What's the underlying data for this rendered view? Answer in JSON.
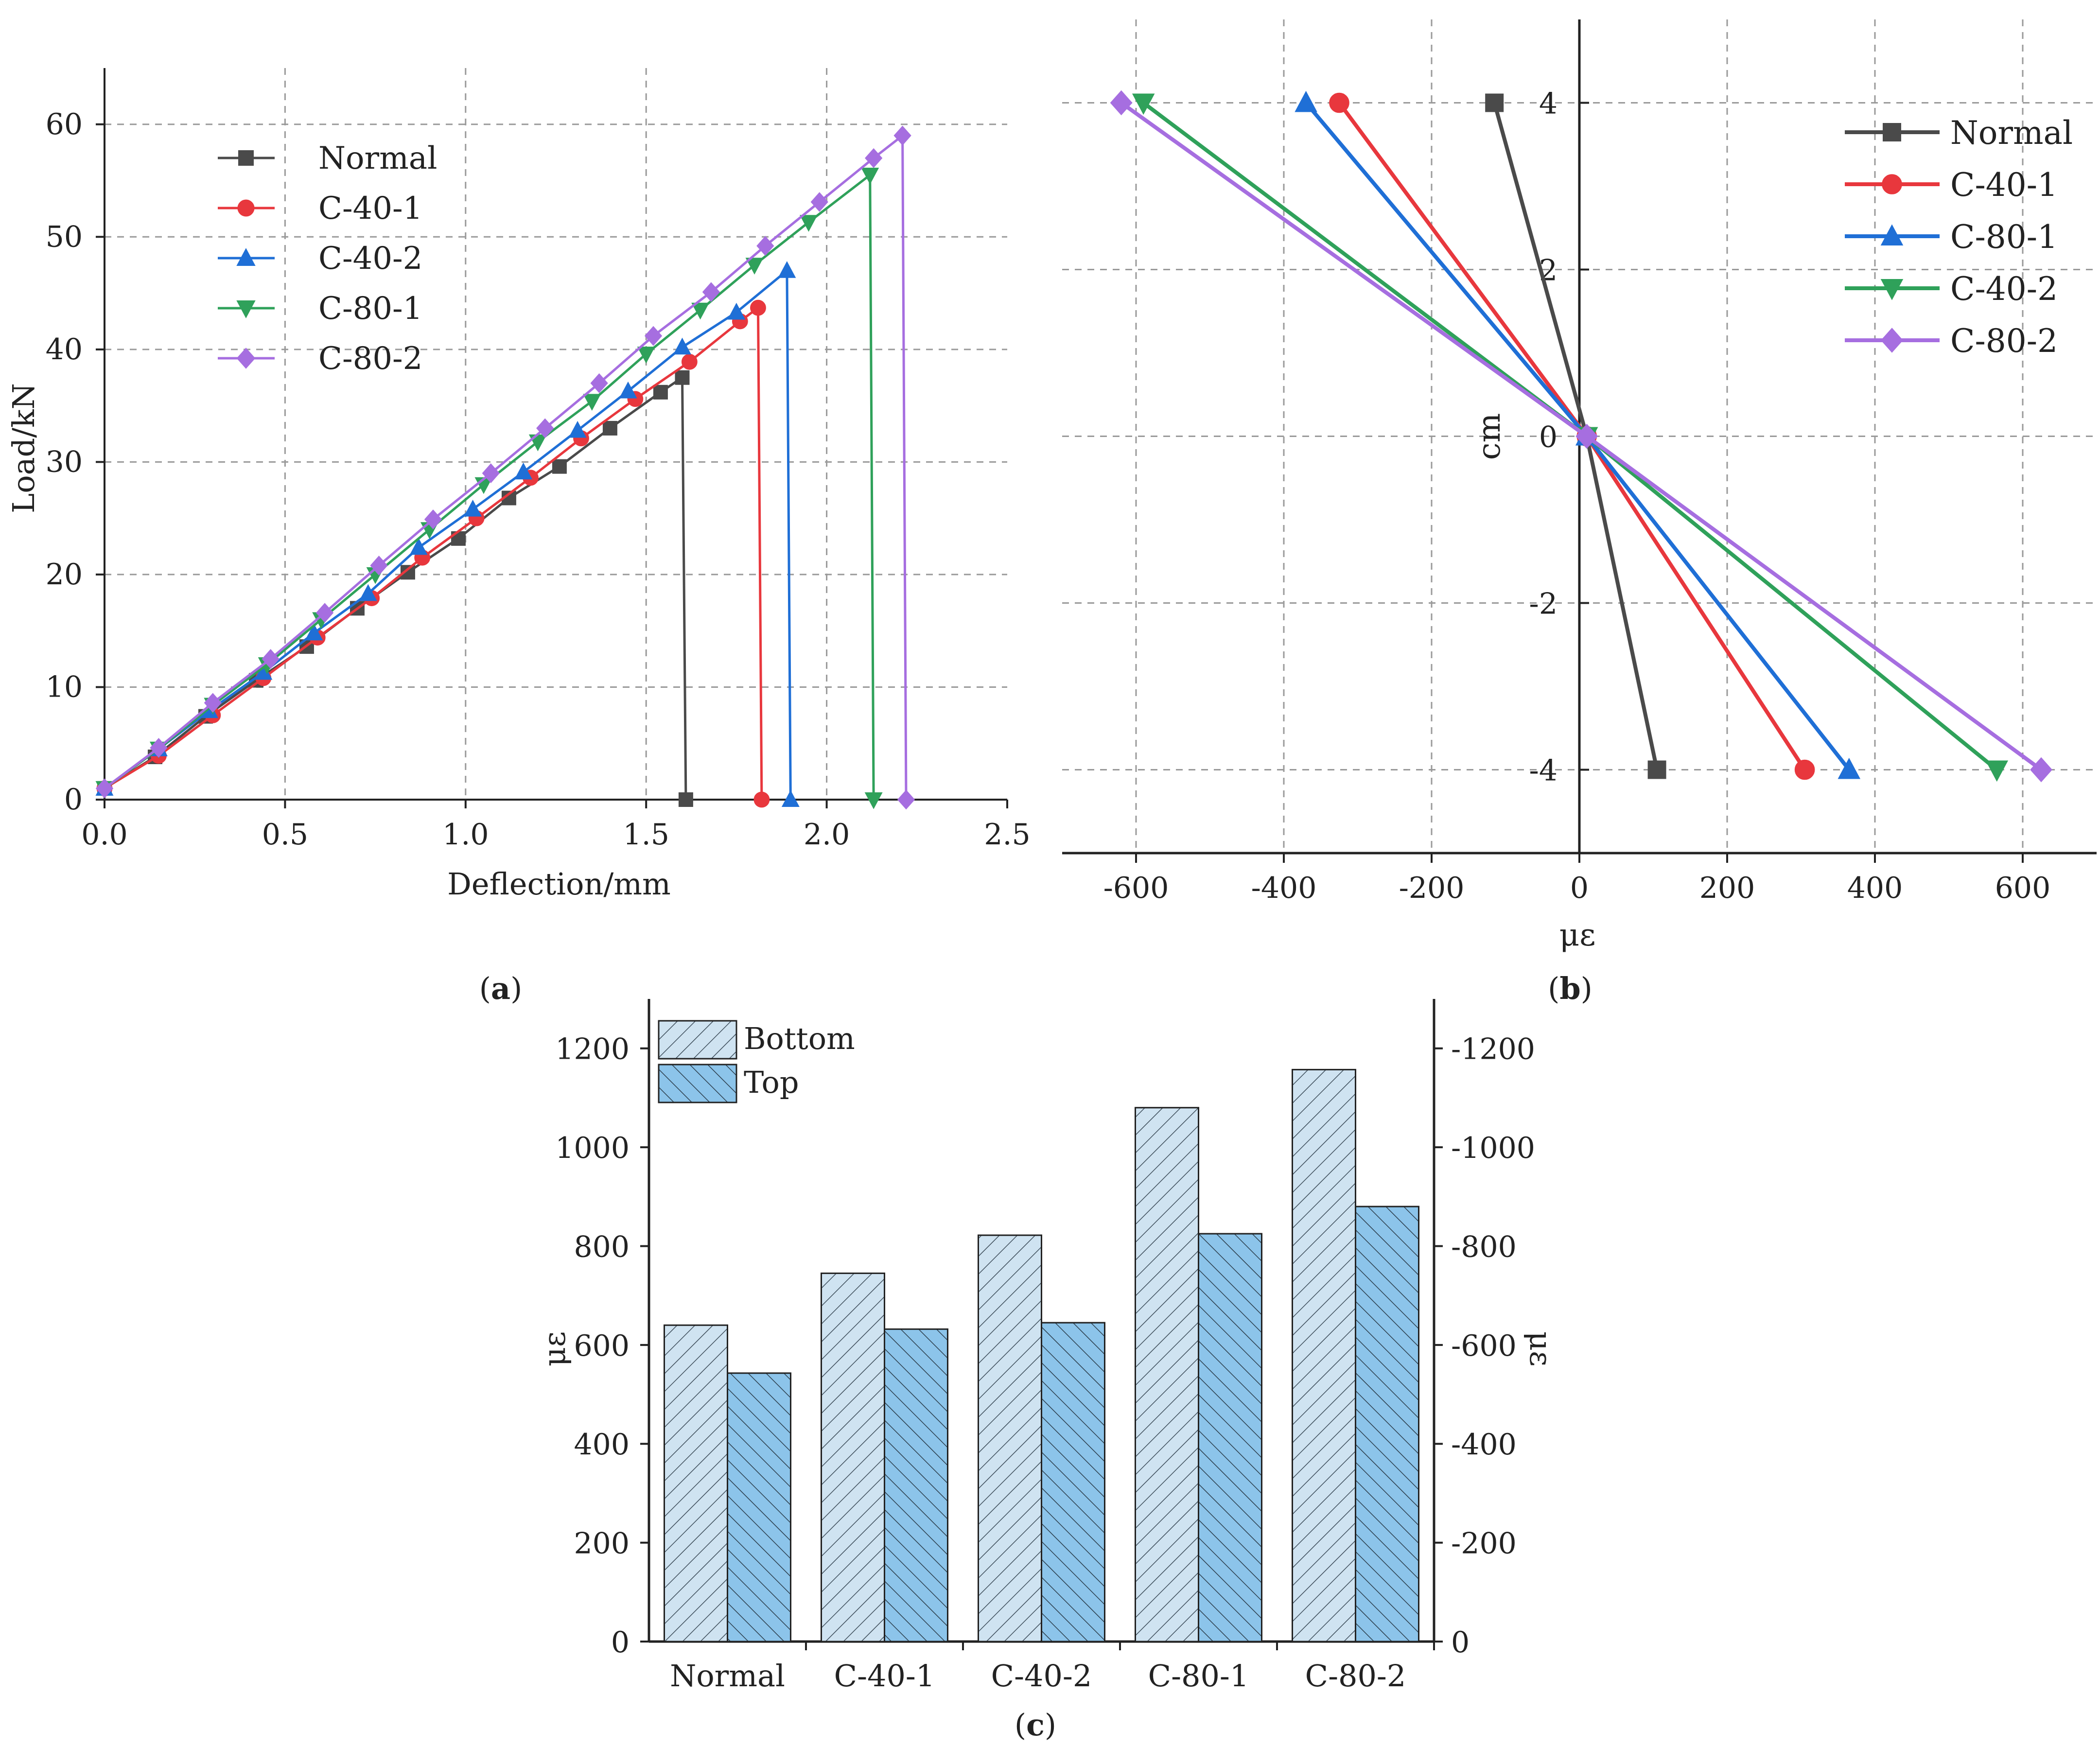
{
  "colors": {
    "normal": "#4a4a4a",
    "c401": "#e8373d",
    "c402": "#1f6fd6",
    "c801": "#2fa15a",
    "c802": "#a66ee0",
    "barLight": "#cfe3f1",
    "barDark": "#8cc4ea",
    "axis": "#222222",
    "grid": "#9a9a9a"
  },
  "chart_data": [
    {
      "id": "a",
      "type": "line",
      "label": "(a)",
      "label_letter": "a",
      "xlabel": "Deflection/mm",
      "ylabel": "Load/kN",
      "xlim": [
        0,
        2.5
      ],
      "ylim": [
        0,
        65
      ],
      "xticks": [
        "0.0",
        "0.5",
        "1.0",
        "1.5",
        "2.0",
        "2.5"
      ],
      "yticks": [
        "0",
        "10",
        "20",
        "30",
        "40",
        "50",
        "60"
      ],
      "grid": true,
      "legend_position": "top-left",
      "series": [
        {
          "name": "Normal",
          "color": "#4a4a4a",
          "marker": "square",
          "x": [
            0,
            0.14,
            0.28,
            0.42,
            0.56,
            0.7,
            0.84,
            0.98,
            1.12,
            1.26,
            1.4,
            1.54,
            1.6,
            1.61
          ],
          "y": [
            1,
            3.8,
            7.4,
            10.6,
            13.6,
            17.0,
            20.2,
            23.2,
            26.8,
            29.6,
            33.0,
            36.2,
            37.5,
            0
          ]
        },
        {
          "name": "C-40-1",
          "color": "#e8373d",
          "marker": "circle",
          "x": [
            0,
            0.15,
            0.3,
            0.44,
            0.59,
            0.74,
            0.88,
            1.03,
            1.18,
            1.32,
            1.47,
            1.62,
            1.76,
            1.81,
            1.82
          ],
          "y": [
            1,
            3.9,
            7.5,
            10.8,
            14.4,
            17.9,
            21.5,
            25.0,
            28.6,
            32.1,
            35.6,
            38.9,
            42.5,
            43.7,
            0
          ]
        },
        {
          "name": "C-40-2",
          "color": "#1f6fd6",
          "marker": "triangle-up",
          "x": [
            0,
            0.15,
            0.29,
            0.44,
            0.58,
            0.73,
            0.87,
            1.02,
            1.16,
            1.31,
            1.45,
            1.6,
            1.75,
            1.89,
            1.9
          ],
          "y": [
            1,
            4.5,
            7.9,
            11.3,
            14.8,
            18.3,
            22.4,
            25.8,
            29.1,
            32.8,
            36.3,
            40.2,
            43.3,
            47.0,
            0
          ]
        },
        {
          "name": "C-80-1",
          "color": "#2fa15a",
          "marker": "triangle-down",
          "x": [
            0,
            0.15,
            0.3,
            0.45,
            0.6,
            0.75,
            0.9,
            1.05,
            1.2,
            1.35,
            1.5,
            1.65,
            1.8,
            1.95,
            2.12,
            2.13
          ],
          "y": [
            1,
            4.5,
            8.4,
            12.0,
            16.0,
            20.0,
            24.0,
            28.0,
            31.8,
            35.4,
            39.6,
            43.5,
            47.5,
            51.3,
            55.5,
            0
          ]
        },
        {
          "name": "C-80-2",
          "color": "#a66ee0",
          "marker": "diamond",
          "x": [
            0,
            0.15,
            0.3,
            0.46,
            0.61,
            0.76,
            0.91,
            1.07,
            1.22,
            1.37,
            1.52,
            1.68,
            1.83,
            1.98,
            2.13,
            2.21,
            2.22
          ],
          "y": [
            1,
            4.6,
            8.6,
            12.5,
            16.6,
            20.8,
            24.9,
            29.0,
            33.0,
            37.0,
            41.2,
            45.1,
            49.2,
            53.1,
            57.0,
            59.0,
            0
          ]
        }
      ]
    },
    {
      "id": "b",
      "type": "line",
      "label": "(b)",
      "label_letter": "b",
      "xlabel": "με",
      "ylabel": "cm",
      "xlim": [
        -700,
        700
      ],
      "ylim": [
        -5,
        5
      ],
      "xticks": [
        "-600",
        "-400",
        "-200",
        "0",
        "200",
        "400",
        "600"
      ],
      "yticks": [
        "-4",
        "-2",
        "0",
        "2",
        "4"
      ],
      "grid": true,
      "legend_position": "top-right",
      "series": [
        {
          "name": "Normal",
          "color": "#4a4a4a",
          "marker": "square",
          "x": [
            -115,
            10,
            105
          ],
          "y": [
            4,
            0,
            -4
          ]
        },
        {
          "name": "C-40-1",
          "color": "#e8373d",
          "marker": "circle",
          "x": [
            -325,
            10,
            305
          ],
          "y": [
            4,
            0,
            -4
          ]
        },
        {
          "name": "C-80-1",
          "color": "#1f6fd6",
          "marker": "triangle-up",
          "x": [
            -370,
            10,
            365
          ],
          "y": [
            4,
            0,
            -4
          ]
        },
        {
          "name": "C-40-2",
          "color": "#2fa15a",
          "marker": "triangle-down",
          "x": [
            -590,
            10,
            565
          ],
          "y": [
            4,
            0,
            -4
          ]
        },
        {
          "name": "C-80-2",
          "color": "#a66ee0",
          "marker": "diamond",
          "x": [
            -620,
            10,
            625
          ],
          "y": [
            4,
            0,
            -4
          ]
        }
      ]
    },
    {
      "id": "c",
      "type": "bar",
      "label": "(c)",
      "label_letter": "c",
      "categories": [
        "Normal",
        "C-40-1",
        "C-40-2",
        "C-80-1",
        "C-80-2"
      ],
      "ylabel": "με",
      "y2label": "με",
      "ylim": [
        0,
        1300
      ],
      "y2lim": [
        0,
        -1300
      ],
      "yticks": [
        "0",
        "200",
        "400",
        "600",
        "800",
        "1000",
        "1200"
      ],
      "y2ticks": [
        "0",
        "-200",
        "-400",
        "-600",
        "-800",
        "-1000",
        "-1200"
      ],
      "legend_position": "top-left",
      "series": [
        {
          "name": "Bottom",
          "axis": "left",
          "values": [
            640,
            745,
            822,
            1080,
            1157
          ]
        },
        {
          "name": "Top",
          "axis": "right",
          "values": [
            -543,
            -632,
            -645,
            -825,
            -880
          ]
        }
      ]
    }
  ]
}
